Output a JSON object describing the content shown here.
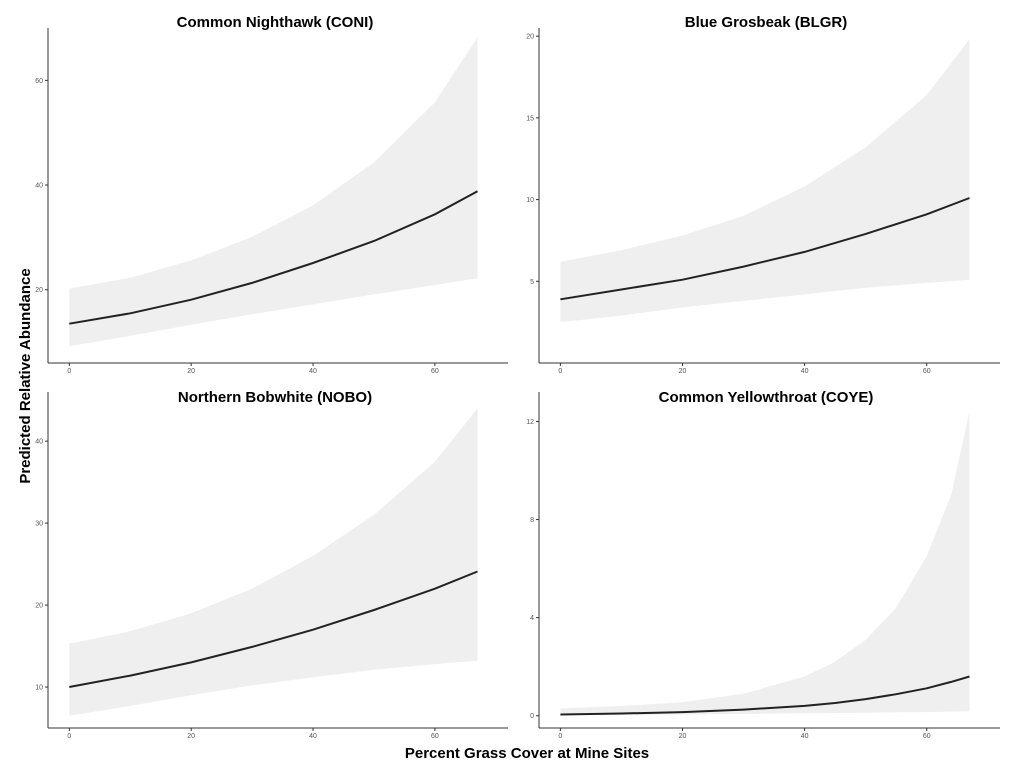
{
  "figure": {
    "shared_xlabel": "Percent Grass Cover at Mine Sites",
    "shared_ylabel": "Predicted Relative Abundance"
  },
  "chart_data": [
    {
      "type": "line",
      "title": "Common Nighthawk (CONI)",
      "xlabel": "Percent Grass Cover at Mine Sites",
      "ylabel": "Predicted Relative Abundance",
      "xlim": [
        -3.5,
        72
      ],
      "ylim": [
        6,
        70
      ],
      "xticks": [
        0,
        20,
        40,
        60
      ],
      "yticks": [
        20,
        40,
        60
      ],
      "grid": false,
      "colors": {
        "line": "#222222",
        "ribbon": "#efefef"
      },
      "series": [
        {
          "x": [
            0,
            10,
            20,
            30,
            40,
            50,
            60,
            67
          ],
          "y": [
            13.5,
            15.5,
            18.1,
            21.3,
            25.1,
            29.3,
            34.4,
            38.8
          ],
          "lower": [
            9.2,
            11.2,
            13.3,
            15.3,
            17.2,
            19.1,
            20.9,
            22.2
          ],
          "upper": [
            20.2,
            22.3,
            25.6,
            30.1,
            36.1,
            44.3,
            55.8,
            68.2
          ]
        }
      ]
    },
    {
      "type": "line",
      "title": "Blue Grosbeak (BLGR)",
      "xlabel": "Percent Grass Cover at Mine Sites",
      "ylabel": "Predicted Relative Abundance",
      "xlim": [
        -3.5,
        72
      ],
      "ylim": [
        0,
        20.5
      ],
      "xticks": [
        0,
        20,
        40,
        60
      ],
      "yticks": [
        5,
        10,
        15,
        20
      ],
      "grid": false,
      "colors": {
        "line": "#222222",
        "ribbon": "#efefef"
      },
      "series": [
        {
          "x": [
            0,
            10,
            20,
            30,
            40,
            50,
            60,
            67
          ],
          "y": [
            3.9,
            4.5,
            5.1,
            5.9,
            6.8,
            7.9,
            9.1,
            10.1
          ],
          "lower": [
            2.5,
            2.9,
            3.4,
            3.8,
            4.2,
            4.6,
            4.9,
            5.1
          ],
          "upper": [
            6.2,
            6.9,
            7.8,
            9.0,
            10.8,
            13.2,
            16.4,
            19.8
          ]
        }
      ]
    },
    {
      "type": "line",
      "title": "Northern Bobwhite (NOBO)",
      "xlabel": "Percent Grass Cover at Mine Sites",
      "ylabel": "Predicted Relative Abundance",
      "xlim": [
        -3.5,
        72
      ],
      "ylim": [
        5,
        46
      ],
      "xticks": [
        0,
        20,
        40,
        60
      ],
      "yticks": [
        10,
        20,
        30,
        40
      ],
      "grid": false,
      "colors": {
        "line": "#222222",
        "ribbon": "#efefef"
      },
      "series": [
        {
          "x": [
            0,
            10,
            20,
            30,
            40,
            50,
            60,
            67
          ],
          "y": [
            10.0,
            11.4,
            13.0,
            14.9,
            17.0,
            19.4,
            22.0,
            24.1
          ],
          "lower": [
            6.5,
            7.7,
            9.0,
            10.2,
            11.2,
            12.1,
            12.8,
            13.2
          ],
          "upper": [
            15.3,
            16.8,
            19.0,
            22.0,
            26.0,
            31.0,
            37.5,
            44.0
          ]
        }
      ]
    },
    {
      "type": "line",
      "title": "Common Yellowthroat (COYE)",
      "xlabel": "Percent Grass Cover at Mine Sites",
      "ylabel": "Predicted Relative Abundance",
      "xlim": [
        -3.5,
        72
      ],
      "ylim": [
        -0.5,
        13.2
      ],
      "xticks": [
        0,
        20,
        40,
        60
      ],
      "yticks": [
        0,
        4,
        8,
        12
      ],
      "grid": false,
      "colors": {
        "line": "#222222",
        "ribbon": "#efefef"
      },
      "series": [
        {
          "x": [
            0,
            10,
            20,
            30,
            40,
            45,
            50,
            55,
            60,
            64,
            67
          ],
          "y": [
            0.05,
            0.09,
            0.15,
            0.25,
            0.4,
            0.52,
            0.68,
            0.88,
            1.12,
            1.38,
            1.6
          ],
          "lower": [
            0.02,
            0.03,
            0.05,
            0.07,
            0.1,
            0.11,
            0.12,
            0.14,
            0.15,
            0.17,
            0.18
          ],
          "upper": [
            0.3,
            0.4,
            0.55,
            0.9,
            1.6,
            2.2,
            3.1,
            4.4,
            6.5,
            9.0,
            12.4
          ]
        }
      ]
    }
  ]
}
